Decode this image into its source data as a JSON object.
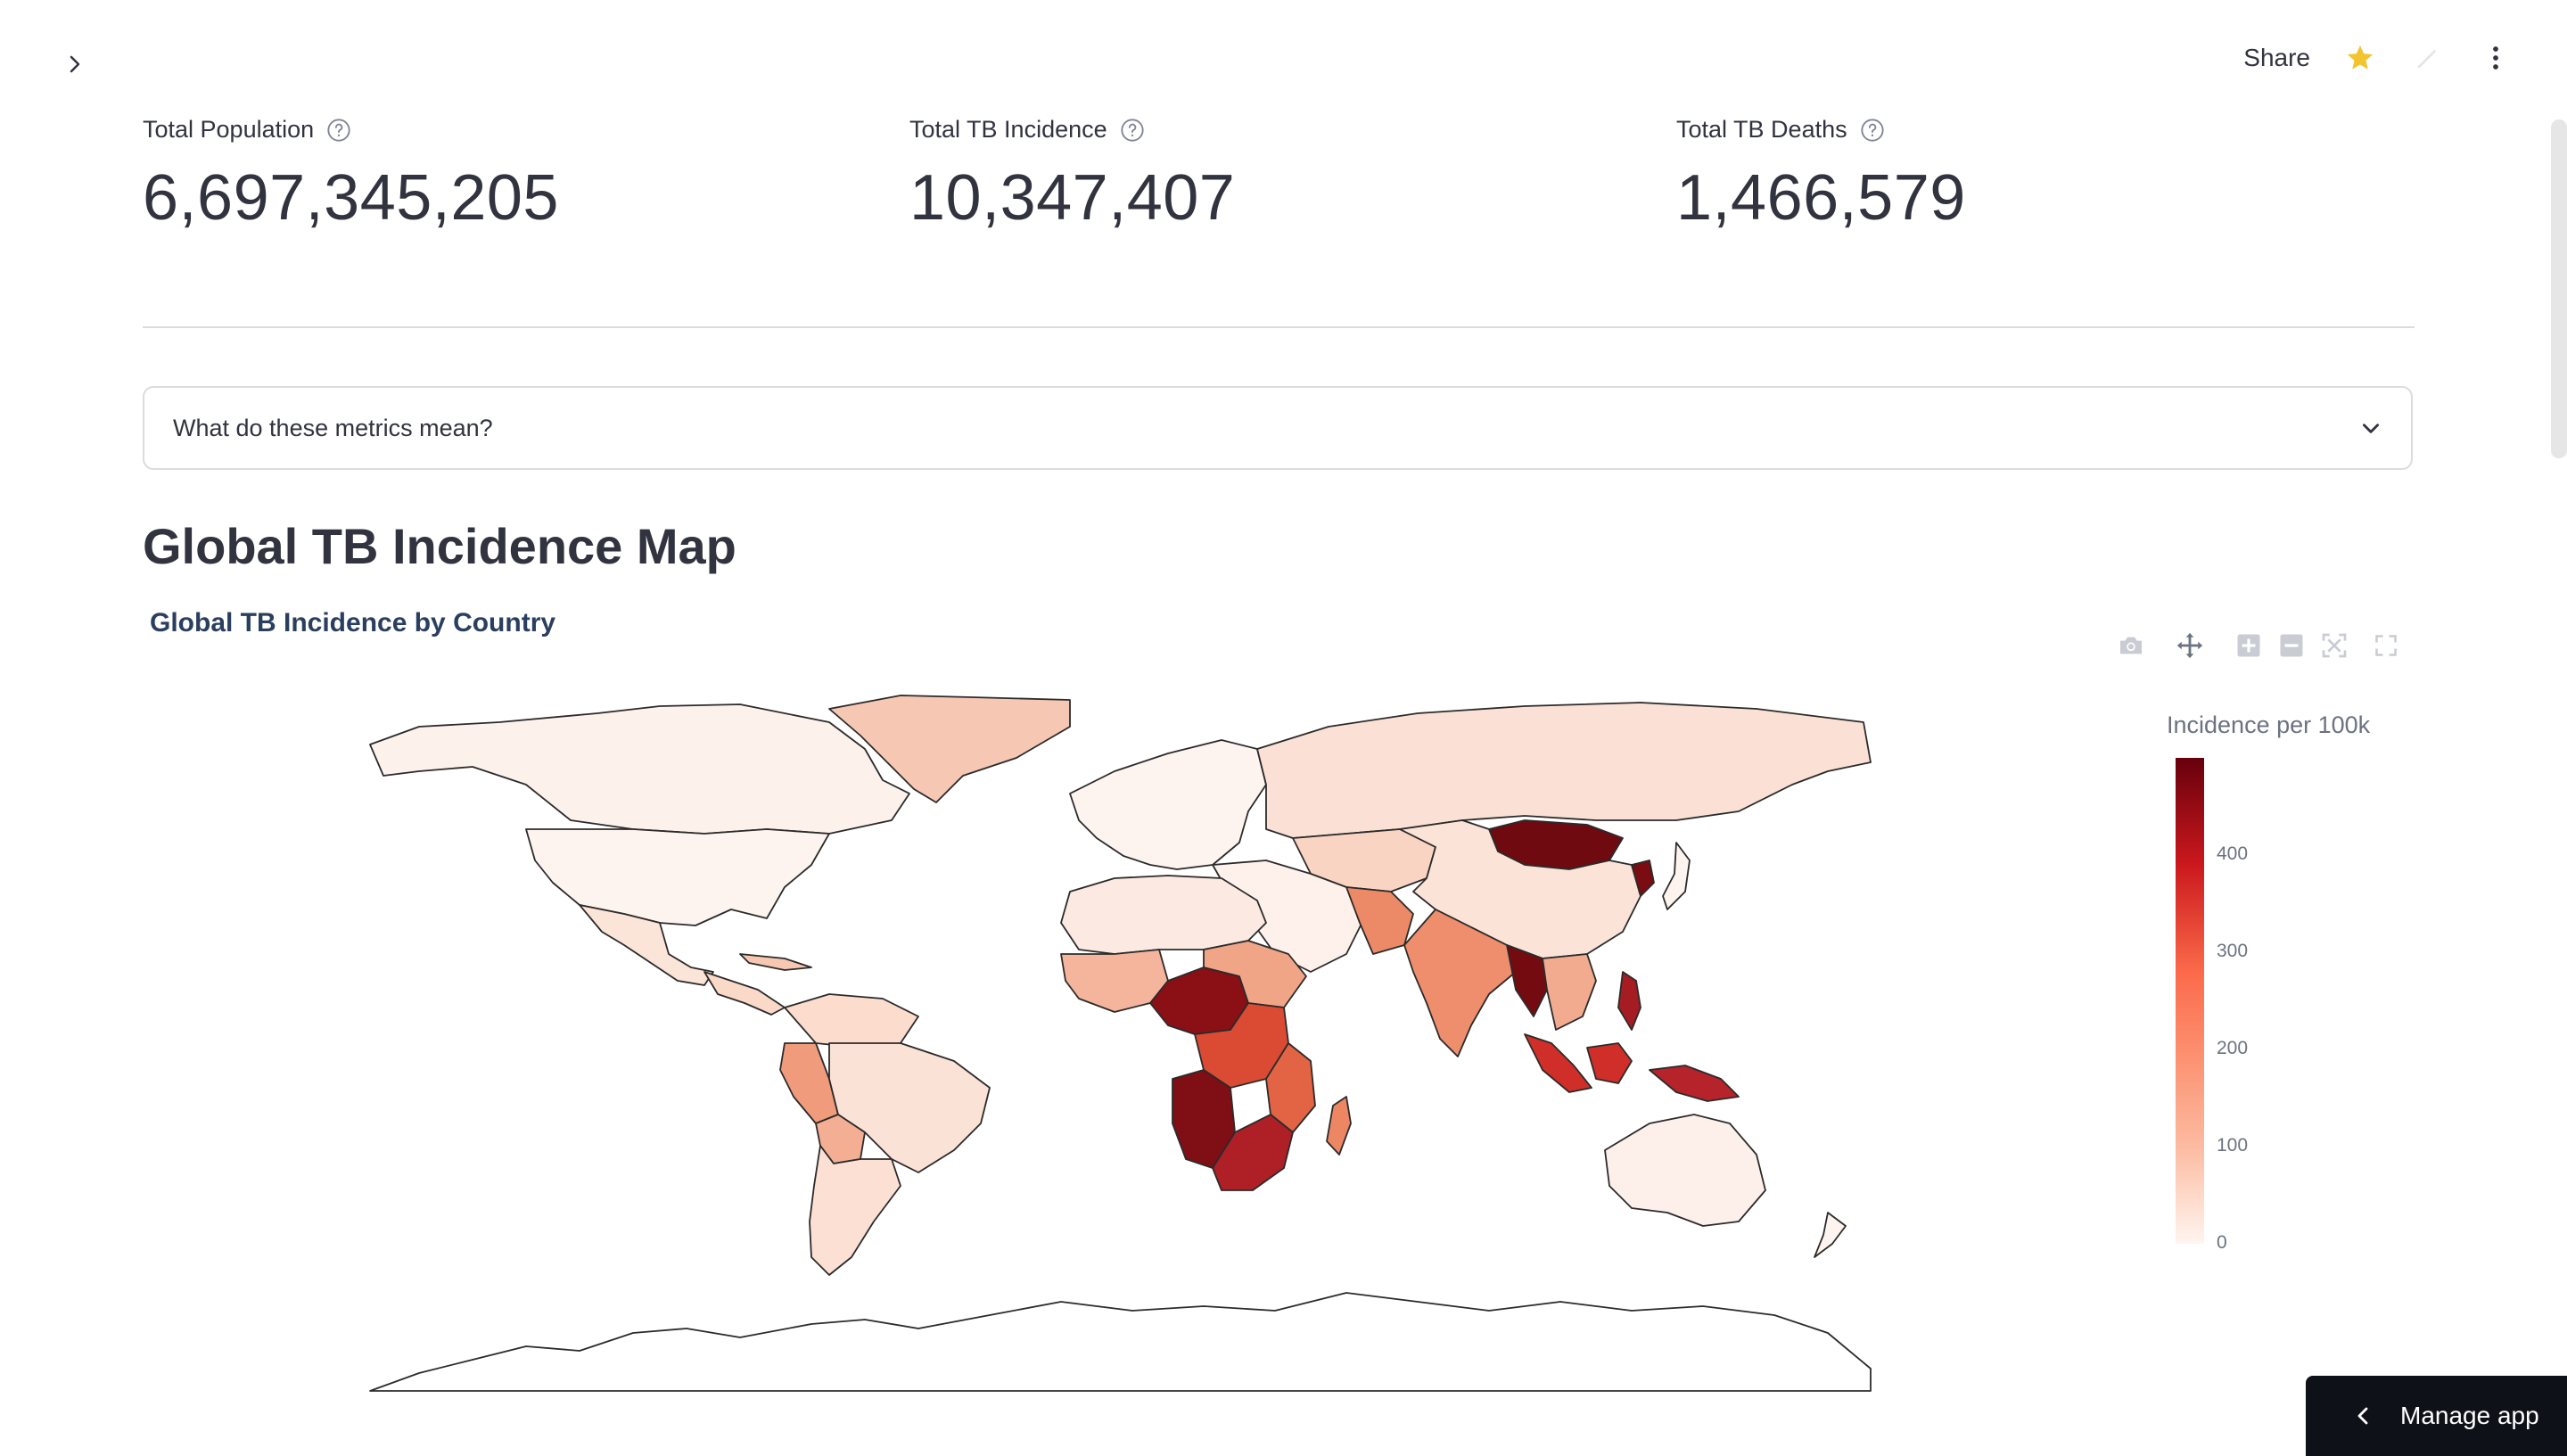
{
  "topbar": {
    "share_label": "Share",
    "icons": [
      "chevron-right-icon",
      "star-icon",
      "edit-icon",
      "more-vertical-icon"
    ]
  },
  "metrics": [
    {
      "label": "Total Population",
      "value": "6,697,345,205"
    },
    {
      "label": "Total TB Incidence",
      "value": "10,347,407"
    },
    {
      "label": "Total TB Deaths",
      "value": "1,466,579"
    }
  ],
  "expander": {
    "label": "What do these metrics mean?"
  },
  "section": {
    "title": "Global TB Incidence Map"
  },
  "chart_data": {
    "type": "choropleth",
    "title": "Global TB Incidence by Country",
    "colorbar_title": "Incidence per 100k",
    "colorscale": "Reds",
    "range": [
      0,
      500
    ],
    "ticks": [
      "0",
      "100",
      "200",
      "300",
      "400"
    ]
  },
  "colors": {
    "text": "#31333f",
    "map_low": "#fff5f0",
    "map_high": "#67000d",
    "star": "#f4c430",
    "manage_bg": "#0e1117"
  },
  "manage": {
    "label": "Manage app"
  }
}
